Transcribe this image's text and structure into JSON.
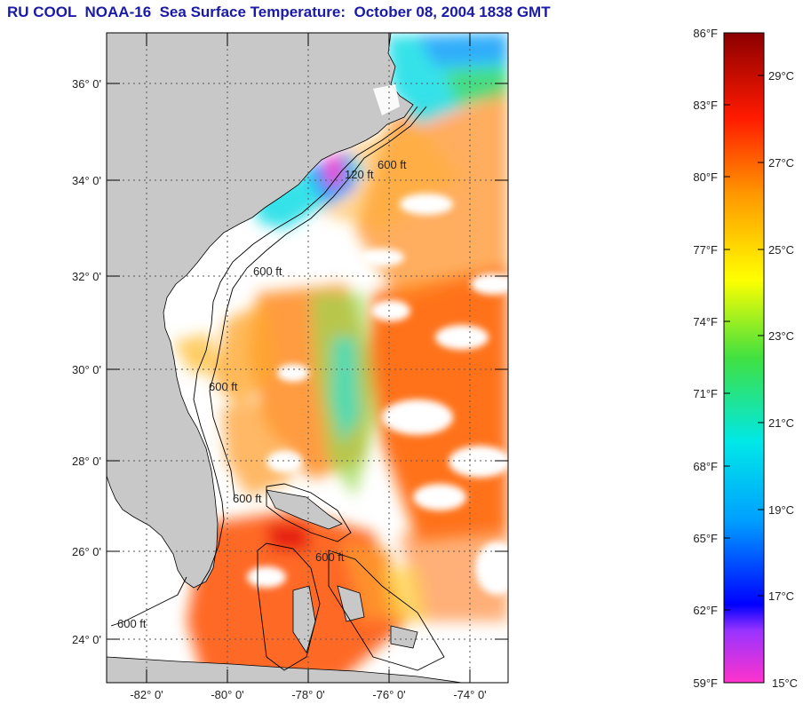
{
  "title": "RU COOL  NOAA-16  Sea Surface Temperature:  October 08, 2004 1838 GMT",
  "map": {
    "lat_ticks": [
      "36° 0'",
      "34° 0'",
      "32° 0'",
      "30° 0'",
      "28° 0'",
      "26° 0'",
      "24° 0'"
    ],
    "lon_ticks": [
      "-82° 0'",
      "-80° 0'",
      "-78° 0'",
      "-76° 0'",
      "-74° 0'"
    ],
    "contour_labels": [
      "600 ft",
      "120 ft",
      "600 ft",
      "600 ft",
      "600 ft",
      "600 ft",
      "600 ft"
    ]
  },
  "colorbar": {
    "fahrenheit": [
      "86°F",
      "83°F",
      "80°F",
      "77°F",
      "74°F",
      "71°F",
      "68°F",
      "65°F",
      "62°F",
      "59°F"
    ],
    "celsius": [
      "29°C",
      "27°C",
      "25°C",
      "23°C",
      "21°C",
      "19°C",
      "17°C",
      "15°C"
    ]
  },
  "colors": {
    "title": "#1a1aa8",
    "land": "#c8c8c8",
    "cloud": "#ffffff",
    "warm": "#ff6a10",
    "cool": "#2ce0e8"
  }
}
